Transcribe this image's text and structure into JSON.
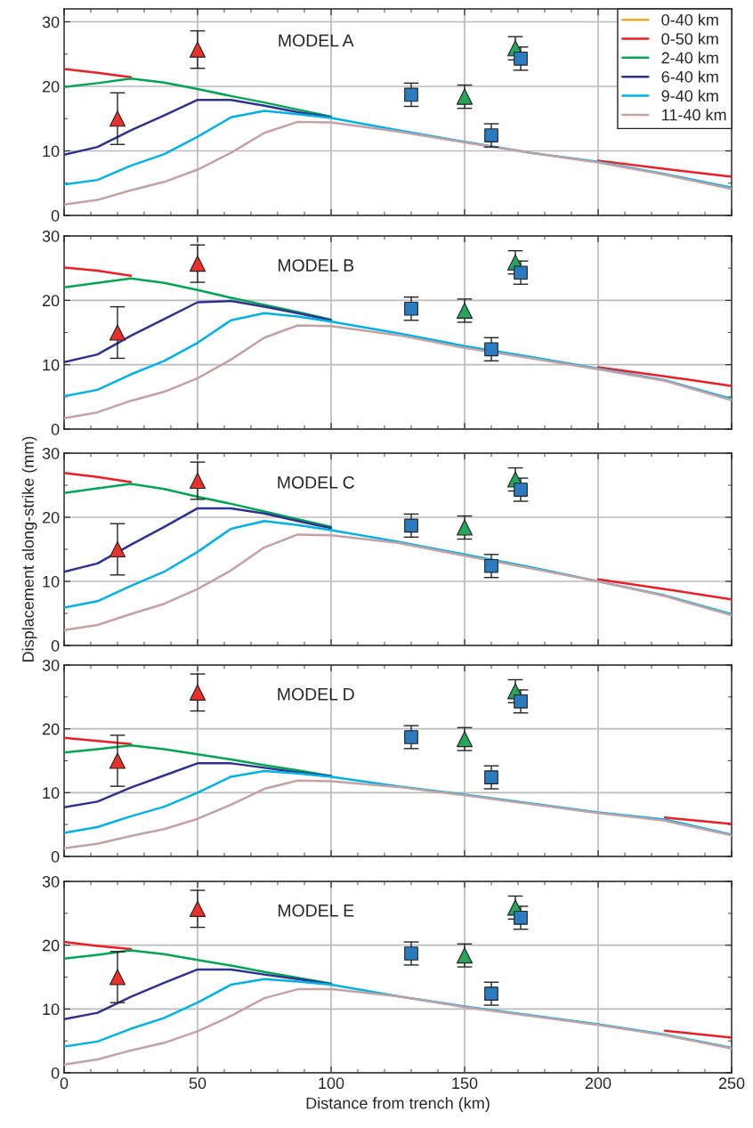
{
  "chart_data": [
    {
      "type": "line",
      "title": "MODEL A",
      "legend": "top right",
      "grid": true,
      "tick_labels": "y",
      "xlim": [
        0,
        250
      ],
      "ylim": [
        0,
        32
      ],
      "xticks": [
        0,
        {
          "value": 10,
          "label": null
        },
        {
          "value": 20,
          "label": null
        },
        {
          "value": 30,
          "label": null
        },
        {
          "value": 40,
          "label": null
        },
        50,
        {
          "value": 60,
          "label": null
        },
        {
          "value": 70,
          "label": null
        },
        {
          "value": 80,
          "label": null
        },
        {
          "value": 90,
          "label": null
        },
        100,
        {
          "value": 110,
          "label": null
        },
        {
          "value": 120,
          "label": null
        },
        {
          "value": 130,
          "label": null
        },
        {
          "value": 140,
          "label": null
        },
        150,
        {
          "value": 160,
          "label": null
        },
        {
          "value": 170,
          "label": null
        },
        {
          "value": 180,
          "label": null
        },
        {
          "value": 190,
          "label": null
        },
        200,
        {
          "value": 210,
          "label": null
        },
        {
          "value": 220,
          "label": null
        },
        {
          "value": 230,
          "label": null
        },
        {
          "value": 240,
          "label": null
        },
        250
      ],
      "yticks": [
        0,
        {
          "value": 5,
          "label": null
        },
        10,
        {
          "value": 15,
          "label": null
        },
        20,
        {
          "value": 25,
          "label": null
        },
        30
      ],
      "x": [
        0,
        12.5,
        25,
        37.5,
        50,
        62.5,
        75,
        87.5,
        100,
        125,
        150,
        175,
        200,
        225,
        250
      ],
      "series": [
        {
          "name": "0-40 km",
          "color": "#f5a623",
          "values": [
            null,
            null,
            null,
            null,
            null,
            null,
            null,
            null,
            null,
            null,
            null,
            null,
            null,
            null,
            null
          ]
        },
        {
          "name": "0-50 km",
          "color": "#ee1c25",
          "values": [
            22.7,
            22.1,
            21.4,
            null,
            null,
            null,
            null,
            null,
            null,
            null,
            null,
            null,
            8.5,
            7.2,
            6.0
          ]
        },
        {
          "name": "2-40 km",
          "color": "#00a651",
          "values": [
            19.9,
            20.5,
            21.2,
            20.6,
            19.6,
            18.5,
            17.5,
            16.4,
            15.3,
            null,
            null,
            null,
            null,
            null,
            null
          ]
        },
        {
          "name": "6-40 km",
          "color": "#2e3192",
          "values": [
            9.4,
            10.6,
            13.2,
            15.5,
            17.9,
            17.9,
            17.0,
            16.0,
            15.2,
            null,
            null,
            null,
            null,
            null,
            null
          ]
        },
        {
          "name": "9-40 km",
          "color": "#00b2e8",
          "values": [
            4.8,
            5.5,
            7.7,
            9.5,
            12.2,
            15.2,
            16.2,
            15.7,
            15.1,
            13.2,
            11.4,
            9.7,
            8.3,
            6.4,
            4.3
          ]
        },
        {
          "name": "11-40 km",
          "color": "#c4a1a4",
          "values": [
            1.7,
            2.4,
            3.9,
            5.2,
            7.1,
            9.7,
            12.8,
            14.5,
            14.4,
            13.0,
            11.3,
            9.7,
            8.2,
            6.3,
            4.1
          ]
        },
        {
          "type": "scatter",
          "marker": "triangle",
          "color": "#e8312a",
          "x": [
            20,
            50
          ],
          "values": [
            15.0,
            25.7
          ],
          "errors": [
            4.0,
            2.9
          ]
        },
        {
          "type": "scatter",
          "marker": "triangle",
          "color": "#25a55a",
          "x": [
            150,
            169
          ],
          "values": [
            18.4,
            25.9
          ],
          "errors": [
            1.8,
            1.8
          ]
        },
        {
          "type": "scatter",
          "marker": "square",
          "color": "#2a7bbf",
          "x": [
            130,
            160,
            171
          ],
          "values": [
            18.7,
            12.4,
            24.3
          ],
          "errors": [
            1.8,
            1.8,
            1.8
          ]
        }
      ]
    },
    {
      "type": "line",
      "title": "MODEL B",
      "grid": true,
      "tick_labels": "y",
      "xlim": [
        0,
        250
      ],
      "ylim": [
        0,
        30
      ],
      "xticks": [
        0,
        {
          "value": 10,
          "label": null
        },
        {
          "value": 20,
          "label": null
        },
        {
          "value": 30,
          "label": null
        },
        {
          "value": 40,
          "label": null
        },
        50,
        {
          "value": 60,
          "label": null
        },
        {
          "value": 70,
          "label": null
        },
        {
          "value": 80,
          "label": null
        },
        {
          "value": 90,
          "label": null
        },
        100,
        {
          "value": 110,
          "label": null
        },
        {
          "value": 120,
          "label": null
        },
        {
          "value": 130,
          "label": null
        },
        {
          "value": 140,
          "label": null
        },
        150,
        {
          "value": 160,
          "label": null
        },
        {
          "value": 170,
          "label": null
        },
        {
          "value": 180,
          "label": null
        },
        {
          "value": 190,
          "label": null
        },
        200,
        {
          "value": 210,
          "label": null
        },
        {
          "value": 220,
          "label": null
        },
        {
          "value": 230,
          "label": null
        },
        {
          "value": 240,
          "label": null
        },
        250
      ],
      "yticks": [
        0,
        {
          "value": 5,
          "label": null
        },
        10,
        {
          "value": 15,
          "label": null
        },
        20,
        {
          "value": 25,
          "label": null
        },
        30
      ],
      "x": [
        0,
        12.5,
        25,
        37.5,
        50,
        62.5,
        75,
        87.5,
        100,
        125,
        150,
        175,
        200,
        225,
        250
      ],
      "series": [
        {
          "color": "#f5a623",
          "values": [
            null,
            null,
            null,
            null,
            null,
            null,
            null,
            null,
            null,
            null,
            null,
            null,
            null,
            null,
            null
          ]
        },
        {
          "color": "#ee1c25",
          "values": [
            25.1,
            24.6,
            23.8,
            null,
            null,
            null,
            null,
            null,
            null,
            null,
            null,
            null,
            9.6,
            8.2,
            6.7
          ]
        },
        {
          "color": "#00a651",
          "values": [
            22.0,
            22.7,
            23.4,
            22.7,
            21.6,
            20.4,
            19.3,
            18.2,
            17.0,
            null,
            null,
            null,
            null,
            null,
            null
          ]
        },
        {
          "color": "#2e3192",
          "values": [
            10.4,
            11.6,
            14.5,
            17.1,
            19.7,
            19.9,
            19.0,
            18.0,
            16.9,
            null,
            null,
            null,
            null,
            null,
            null
          ]
        },
        {
          "color": "#00b2e8",
          "values": [
            5.1,
            6.1,
            8.5,
            10.6,
            13.4,
            16.9,
            18.0,
            17.5,
            16.7,
            14.9,
            12.9,
            11.2,
            9.4,
            7.6,
            4.7
          ]
        },
        {
          "color": "#c4a1a4",
          "values": [
            1.7,
            2.6,
            4.4,
            5.8,
            7.9,
            10.8,
            14.2,
            16.1,
            16.0,
            14.6,
            12.6,
            11.0,
            9.3,
            7.5,
            4.5
          ]
        },
        {
          "type": "scatter",
          "marker": "triangle",
          "color": "#e8312a",
          "x": [
            20,
            50
          ],
          "values": [
            15.0,
            25.7
          ],
          "errors": [
            4.0,
            2.9
          ]
        },
        {
          "type": "scatter",
          "marker": "triangle",
          "color": "#25a55a",
          "x": [
            150,
            169
          ],
          "values": [
            18.4,
            25.9
          ],
          "errors": [
            1.8,
            1.8
          ]
        },
        {
          "type": "scatter",
          "marker": "square",
          "color": "#2a7bbf",
          "x": [
            130,
            160,
            171
          ],
          "values": [
            18.7,
            12.4,
            24.3
          ],
          "errors": [
            1.8,
            1.8,
            1.8
          ]
        }
      ]
    },
    {
      "type": "line",
      "title": "MODEL C",
      "ylabel": "Displacement along-strike (mm)",
      "grid": true,
      "tick_labels": "y",
      "xlim": [
        0,
        250
      ],
      "ylim": [
        0,
        30
      ],
      "xticks": [
        0,
        {
          "value": 10,
          "label": null
        },
        {
          "value": 20,
          "label": null
        },
        {
          "value": 30,
          "label": null
        },
        {
          "value": 40,
          "label": null
        },
        50,
        {
          "value": 60,
          "label": null
        },
        {
          "value": 70,
          "label": null
        },
        {
          "value": 80,
          "label": null
        },
        {
          "value": 90,
          "label": null
        },
        100,
        {
          "value": 110,
          "label": null
        },
        {
          "value": 120,
          "label": null
        },
        {
          "value": 130,
          "label": null
        },
        {
          "value": 140,
          "label": null
        },
        150,
        {
          "value": 160,
          "label": null
        },
        {
          "value": 170,
          "label": null
        },
        {
          "value": 180,
          "label": null
        },
        {
          "value": 190,
          "label": null
        },
        200,
        {
          "value": 210,
          "label": null
        },
        {
          "value": 220,
          "label": null
        },
        {
          "value": 230,
          "label": null
        },
        {
          "value": 240,
          "label": null
        },
        250
      ],
      "yticks": [
        0,
        {
          "value": 5,
          "label": null
        },
        10,
        {
          "value": 15,
          "label": null
        },
        20,
        {
          "value": 25,
          "label": null
        },
        30
      ],
      "x": [
        0,
        12.5,
        25,
        37.5,
        50,
        62.5,
        75,
        87.5,
        100,
        125,
        150,
        175,
        200,
        225,
        250
      ],
      "series": [
        {
          "color": "#f5a623",
          "values": [
            null,
            null,
            null,
            null,
            null,
            null,
            null,
            null,
            null,
            null,
            null,
            null,
            null,
            null,
            null
          ]
        },
        {
          "color": "#ee1c25",
          "values": [
            26.9,
            26.3,
            25.5,
            null,
            null,
            null,
            null,
            null,
            null,
            null,
            null,
            null,
            10.3,
            8.8,
            7.2
          ]
        },
        {
          "color": "#00a651",
          "values": [
            23.8,
            24.5,
            25.2,
            24.4,
            23.2,
            22.1,
            20.9,
            19.7,
            18.5,
            null,
            null,
            null,
            null,
            null,
            null
          ]
        },
        {
          "color": "#2e3192",
          "values": [
            11.5,
            12.8,
            15.7,
            18.5,
            21.4,
            21.4,
            20.6,
            19.4,
            18.3,
            null,
            null,
            null,
            null,
            null,
            null
          ]
        },
        {
          "color": "#00b2e8",
          "values": [
            5.9,
            6.9,
            9.3,
            11.5,
            14.6,
            18.2,
            19.4,
            18.8,
            18.0,
            16.2,
            14.2,
            12.2,
            10.0,
            7.8,
            4.9
          ]
        },
        {
          "color": "#c4a1a4",
          "values": [
            2.4,
            3.2,
            4.9,
            6.5,
            8.8,
            11.7,
            15.3,
            17.3,
            17.2,
            16.0,
            14.0,
            12.0,
            10.0,
            7.7,
            4.7
          ]
        },
        {
          "type": "scatter",
          "marker": "triangle",
          "color": "#e8312a",
          "x": [
            20,
            50
          ],
          "values": [
            15.0,
            25.7
          ],
          "errors": [
            4.0,
            2.9
          ]
        },
        {
          "type": "scatter",
          "marker": "triangle",
          "color": "#25a55a",
          "x": [
            150,
            169
          ],
          "values": [
            18.4,
            25.9
          ],
          "errors": [
            1.8,
            1.8
          ]
        },
        {
          "type": "scatter",
          "marker": "square",
          "color": "#2a7bbf",
          "x": [
            130,
            160,
            171
          ],
          "values": [
            18.7,
            12.4,
            24.3
          ],
          "errors": [
            1.8,
            1.8,
            1.8
          ]
        }
      ]
    },
    {
      "type": "line",
      "title": "MODEL D",
      "grid": true,
      "tick_labels": "y",
      "xlim": [
        0,
        250
      ],
      "ylim": [
        0,
        30
      ],
      "xticks": [
        0,
        {
          "value": 10,
          "label": null
        },
        {
          "value": 20,
          "label": null
        },
        {
          "value": 30,
          "label": null
        },
        {
          "value": 40,
          "label": null
        },
        50,
        {
          "value": 60,
          "label": null
        },
        {
          "value": 70,
          "label": null
        },
        {
          "value": 80,
          "label": null
        },
        {
          "value": 90,
          "label": null
        },
        100,
        {
          "value": 110,
          "label": null
        },
        {
          "value": 120,
          "label": null
        },
        {
          "value": 130,
          "label": null
        },
        {
          "value": 140,
          "label": null
        },
        150,
        {
          "value": 160,
          "label": null
        },
        {
          "value": 170,
          "label": null
        },
        {
          "value": 180,
          "label": null
        },
        {
          "value": 190,
          "label": null
        },
        200,
        {
          "value": 210,
          "label": null
        },
        {
          "value": 220,
          "label": null
        },
        {
          "value": 230,
          "label": null
        },
        {
          "value": 240,
          "label": null
        },
        250
      ],
      "yticks": [
        0,
        {
          "value": 5,
          "label": null
        },
        10,
        {
          "value": 15,
          "label": null
        },
        20,
        {
          "value": 25,
          "label": null
        },
        30
      ],
      "x": [
        0,
        12.5,
        25,
        37.5,
        50,
        62.5,
        75,
        87.5,
        100,
        125,
        150,
        175,
        200,
        225,
        250
      ],
      "series": [
        {
          "color": "#f5a623",
          "values": [
            null,
            null,
            null,
            null,
            null,
            null,
            null,
            null,
            null,
            null,
            null,
            null,
            null,
            null,
            null
          ]
        },
        {
          "color": "#ee1c25",
          "values": [
            18.6,
            18.1,
            17.6,
            null,
            null,
            null,
            null,
            null,
            null,
            null,
            null,
            null,
            null,
            6.1,
            5.1
          ]
        },
        {
          "color": "#00a651",
          "values": [
            16.3,
            16.8,
            17.4,
            16.8,
            16.0,
            15.2,
            14.3,
            13.5,
            12.6,
            null,
            null,
            null,
            null,
            null,
            null
          ]
        },
        {
          "color": "#2e3192",
          "values": [
            7.7,
            8.6,
            10.8,
            12.7,
            14.6,
            14.6,
            13.9,
            13.2,
            12.6,
            null,
            null,
            null,
            null,
            null,
            null
          ]
        },
        {
          "color": "#00b2e8",
          "values": [
            3.7,
            4.6,
            6.3,
            7.8,
            10.0,
            12.5,
            13.4,
            13.0,
            12.5,
            11.0,
            9.7,
            8.3,
            6.9,
            5.8,
            3.4
          ]
        },
        {
          "color": "#c4a1a4",
          "values": [
            1.3,
            2.0,
            3.2,
            4.3,
            5.9,
            8.1,
            10.6,
            11.9,
            11.8,
            10.9,
            9.6,
            8.2,
            6.8,
            5.6,
            3.3
          ]
        },
        {
          "type": "scatter",
          "marker": "triangle",
          "color": "#e8312a",
          "x": [
            20,
            50
          ],
          "values": [
            15.0,
            25.7
          ],
          "errors": [
            4.0,
            2.9
          ]
        },
        {
          "type": "scatter",
          "marker": "triangle",
          "color": "#25a55a",
          "x": [
            150,
            169
          ],
          "values": [
            18.4,
            25.9
          ],
          "errors": [
            1.8,
            1.8
          ]
        },
        {
          "type": "scatter",
          "marker": "square",
          "color": "#2a7bbf",
          "x": [
            130,
            160,
            171
          ],
          "values": [
            18.7,
            12.4,
            24.3
          ],
          "errors": [
            1.8,
            1.8,
            1.8
          ]
        }
      ]
    },
    {
      "type": "line",
      "title": "MODEL E",
      "xlabel": "Distance from trench (km)",
      "grid": true,
      "xlim": [
        0,
        250
      ],
      "ylim": [
        0,
        30
      ],
      "xticks": [
        0,
        {
          "value": 10,
          "label": null
        },
        {
          "value": 20,
          "label": null
        },
        {
          "value": 30,
          "label": null
        },
        {
          "value": 40,
          "label": null
        },
        50,
        {
          "value": 60,
          "label": null
        },
        {
          "value": 70,
          "label": null
        },
        {
          "value": 80,
          "label": null
        },
        {
          "value": 90,
          "label": null
        },
        100,
        {
          "value": 110,
          "label": null
        },
        {
          "value": 120,
          "label": null
        },
        {
          "value": 130,
          "label": null
        },
        {
          "value": 140,
          "label": null
        },
        150,
        {
          "value": 160,
          "label": null
        },
        {
          "value": 170,
          "label": null
        },
        {
          "value": 180,
          "label": null
        },
        {
          "value": 190,
          "label": null
        },
        200,
        {
          "value": 210,
          "label": null
        },
        {
          "value": 220,
          "label": null
        },
        {
          "value": 230,
          "label": null
        },
        {
          "value": 240,
          "label": null
        },
        250
      ],
      "yticks": [
        0,
        {
          "value": 5,
          "label": null
        },
        10,
        {
          "value": 15,
          "label": null
        },
        20,
        {
          "value": 25,
          "label": null
        },
        30
      ],
      "x": [
        0,
        12.5,
        25,
        37.5,
        50,
        62.5,
        75,
        87.5,
        100,
        125,
        150,
        175,
        200,
        225,
        250
      ],
      "series": [
        {
          "color": "#f5a623",
          "values": [
            null,
            null,
            null,
            null,
            null,
            null,
            null,
            null,
            null,
            null,
            null,
            null,
            null,
            null,
            null
          ]
        },
        {
          "color": "#ee1c25",
          "values": [
            20.5,
            19.9,
            19.4,
            null,
            null,
            null,
            null,
            null,
            null,
            null,
            null,
            null,
            null,
            6.6,
            5.5
          ]
        },
        {
          "color": "#00a651",
          "values": [
            17.9,
            18.5,
            19.2,
            18.6,
            17.7,
            16.8,
            15.8,
            14.9,
            14.0,
            null,
            null,
            null,
            null,
            null,
            null
          ]
        },
        {
          "color": "#2e3192",
          "values": [
            8.4,
            9.4,
            11.9,
            14.1,
            16.2,
            16.2,
            15.4,
            14.7,
            13.9,
            null,
            null,
            null,
            null,
            null,
            null
          ]
        },
        {
          "color": "#00b2e8",
          "values": [
            4.1,
            4.9,
            6.9,
            8.6,
            11.0,
            13.8,
            14.7,
            14.3,
            13.8,
            12.0,
            10.4,
            9.0,
            7.6,
            6.0,
            3.9
          ]
        },
        {
          "color": "#c4a1a4",
          "values": [
            1.3,
            2.1,
            3.5,
            4.7,
            6.5,
            8.9,
            11.7,
            13.1,
            13.1,
            12.0,
            10.3,
            8.9,
            7.5,
            5.9,
            3.8
          ]
        },
        {
          "type": "scatter",
          "marker": "triangle",
          "color": "#e8312a",
          "x": [
            20,
            50
          ],
          "values": [
            15.0,
            25.7
          ],
          "errors": [
            4.0,
            2.9
          ]
        },
        {
          "type": "scatter",
          "marker": "triangle",
          "color": "#25a55a",
          "x": [
            150,
            169
          ],
          "values": [
            18.4,
            25.9
          ],
          "errors": [
            1.8,
            1.8
          ]
        },
        {
          "type": "scatter",
          "marker": "square",
          "color": "#2a7bbf",
          "x": [
            130,
            160,
            171
          ],
          "values": [
            18.7,
            12.4,
            24.3
          ],
          "errors": [
            1.8,
            1.8,
            1.8
          ]
        }
      ]
    }
  ]
}
